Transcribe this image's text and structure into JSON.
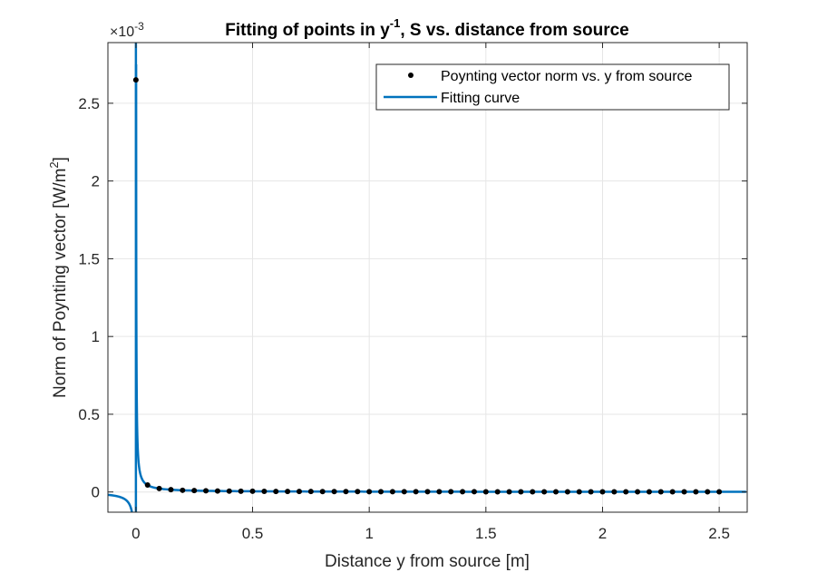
{
  "chart_data": {
    "type": "scatter",
    "title": {
      "prefix": "Fitting of points in y",
      "superscript": "-1",
      "suffix": ", S vs. distance from source"
    },
    "xlabel": "Distance y from source [m]",
    "ylabel": {
      "prefix": "Norm of Poynting vector [W/m",
      "superscript": "2",
      "suffix": "]"
    },
    "y_exponent": {
      "base": "×10",
      "power": "-3"
    },
    "xlim": [
      -0.12,
      2.62
    ],
    "ylim": [
      -0.00013,
      0.00289
    ],
    "x_ticks": [
      0,
      0.5,
      1,
      1.5,
      2,
      2.5
    ],
    "x_tick_labels": [
      "0",
      "0.5",
      "1",
      "1.5",
      "2",
      "2.5"
    ],
    "y_ticks": [
      0,
      0.0005,
      0.001,
      0.0015,
      0.002,
      0.0025
    ],
    "y_tick_labels": [
      "0",
      "0.5",
      "1",
      "1.5",
      "2",
      "2.5"
    ],
    "grid": true,
    "legend_position": "top-right",
    "series": [
      {
        "name": "Poynting vector norm vs. y from source",
        "kind": "points",
        "x": [
          0,
          0.05,
          0.1,
          0.15,
          0.2,
          0.25,
          0.3,
          0.35,
          0.4,
          0.45,
          0.5,
          0.55,
          0.6,
          0.65,
          0.7,
          0.75,
          0.8,
          0.85,
          0.9,
          0.95,
          1,
          1.05,
          1.1,
          1.15,
          1.2,
          1.25,
          1.3,
          1.35,
          1.4,
          1.45,
          1.5,
          1.55,
          1.6,
          1.65,
          1.7,
          1.75,
          1.8,
          1.85,
          1.9,
          1.95,
          2,
          2.05,
          2.1,
          2.15,
          2.2,
          2.25,
          2.3,
          2.35,
          2.4,
          2.45,
          2.5
        ],
        "y": [
          0.00265,
          4.5e-05,
          2.2e-05,
          1.5e-05,
          1.1e-05,
          9e-06,
          7.5e-06,
          6.4e-06,
          5.6e-06,
          5e-06,
          4.5e-06,
          4.1e-06,
          3.7e-06,
          3.4e-06,
          3.2e-06,
          3e-06,
          2.8e-06,
          2.6e-06,
          2.5e-06,
          2.4e-06,
          2.2e-06,
          2.1e-06,
          2e-06,
          1.9e-06,
          1.9e-06,
          1.8e-06,
          1.7e-06,
          1.7e-06,
          1.6e-06,
          1.6e-06,
          1.5e-06,
          1.5e-06,
          1.4e-06,
          1.4e-06,
          1.3e-06,
          1.3e-06,
          1.2e-06,
          1.2e-06,
          1.2e-06,
          1.2e-06,
          1.1e-06,
          1.1e-06,
          1.1e-06,
          1e-06,
          1e-06,
          1e-06,
          1e-06,
          9.5e-07,
          9.3e-07,
          9.1e-07,
          9e-07
        ],
        "color": "#000000"
      },
      {
        "name": "Fitting curve",
        "kind": "line",
        "model": {
          "form": "a / y + b",
          "a": 2.2e-06,
          "b": 0.0
        },
        "color": "#0072BD"
      }
    ]
  }
}
